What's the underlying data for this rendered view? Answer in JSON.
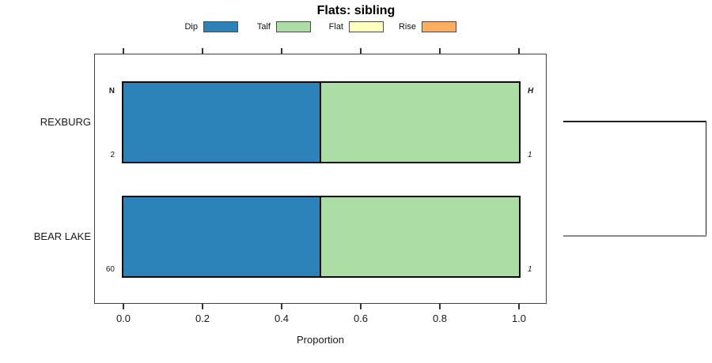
{
  "chart_data": {
    "type": "bar",
    "orientation": "horizontal",
    "stacked": true,
    "title": "Flats: sibling",
    "xlabel": "Proportion",
    "xlim": [
      0,
      1
    ],
    "xticks": [
      "0.0",
      "0.2",
      "0.4",
      "0.6",
      "0.8",
      "1.0"
    ],
    "grid": false,
    "legend_position": "top",
    "categories": [
      "REXBURG",
      "BEAR LAKE"
    ],
    "series": [
      {
        "name": "Dip",
        "color": "#2B83BA",
        "values": [
          0.5,
          0.5
        ]
      },
      {
        "name": "Talf",
        "color": "#ABDDA4",
        "values": [
          0.5,
          0.5
        ]
      },
      {
        "name": "Flat",
        "color": "#FFFFBF",
        "values": [
          0.0,
          0.0
        ]
      },
      {
        "name": "Rise",
        "color": "#FDAE61",
        "values": [
          0.0,
          0.0
        ]
      }
    ],
    "bar_labels": [
      {
        "category": "REXBURG",
        "top_left": "N",
        "bottom_left": "2",
        "top_right": "H",
        "bottom_right": "1"
      },
      {
        "category": "BEAR LAKE",
        "top_left": "",
        "bottom_left": "60",
        "top_right": "",
        "bottom_right": "1"
      }
    ]
  }
}
